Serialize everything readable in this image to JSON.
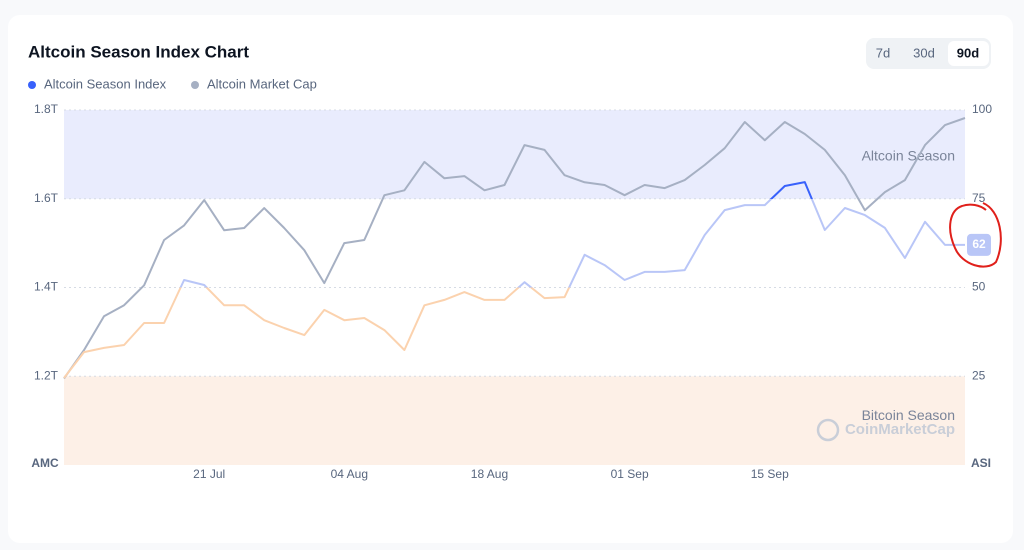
{
  "chart_data": {
    "type": "line",
    "title": "Altcoin Season Index Chart",
    "range_options": [
      "7d",
      "30d",
      "90d"
    ],
    "selected_range": "90d",
    "y_axis_label": "AMC",
    "y2_axis_label": "ASI",
    "watermark": "CoinMarketCap",
    "x": [
      0,
      2,
      4,
      6,
      8,
      10,
      12,
      14,
      16,
      18,
      20,
      22,
      24,
      26,
      28,
      30,
      32,
      34,
      36,
      38,
      40,
      42,
      44,
      46,
      48,
      50,
      52,
      54,
      56,
      58,
      60,
      62,
      64,
      66,
      68,
      70,
      72,
      74,
      76,
      78,
      80,
      82,
      84,
      86,
      88,
      90
    ],
    "xlim": [
      0,
      90
    ],
    "xticks": [
      {
        "value": 14.5,
        "label": "21 Jul"
      },
      {
        "value": 28.5,
        "label": "04 Aug"
      },
      {
        "value": 42.5,
        "label": "18 Aug"
      },
      {
        "value": 56.5,
        "label": "01 Sep"
      },
      {
        "value": 70.5,
        "label": "15 Sep"
      }
    ],
    "ylim": [
      1.0,
      1.8
    ],
    "yticks": [
      {
        "value": 1.2,
        "label": "1.2T"
      },
      {
        "value": 1.4,
        "label": "1.4T"
      },
      {
        "value": 1.6,
        "label": "1.6T"
      },
      {
        "value": 1.8,
        "label": "1.8T"
      }
    ],
    "y2lim": [
      0,
      100
    ],
    "y2ticks": [
      25,
      50,
      75,
      100
    ],
    "bands": [
      {
        "label": "Altcoin Season",
        "from": 75,
        "to": 100,
        "color": "#e9ecfd"
      },
      {
        "label": "Bitcoin Season",
        "from": 0,
        "to": 25,
        "color": "#fdf0e7"
      }
    ],
    "series": [
      {
        "name": "Altcoin Season Index",
        "color": "#3861fb",
        "axis": "y2",
        "values": [
          24.5,
          31.8,
          33,
          33.8,
          40,
          40,
          52.1,
          50.7,
          45,
          45,
          40.8,
          38.6,
          36.6,
          43.7,
          40.8,
          41.4,
          38,
          32.4,
          45,
          46.5,
          48.7,
          46.5,
          46.5,
          51.5,
          47,
          47.3,
          59.2,
          56.3,
          52.1,
          54.4,
          54.4,
          54.9,
          64.8,
          71.8,
          73.2,
          73.2,
          78.6,
          79.7,
          66.2,
          72.4,
          70.4,
          66.8,
          58.3,
          68.5,
          62,
          62
        ]
      },
      {
        "name": "Altcoin Market Cap",
        "color": "#a6b0c3",
        "values": [
          1.195,
          1.259,
          1.335,
          1.36,
          1.405,
          1.507,
          1.54,
          1.597,
          1.529,
          1.534,
          1.579,
          1.534,
          1.484,
          1.41,
          1.5,
          1.507,
          1.608,
          1.619,
          1.683,
          1.646,
          1.651,
          1.619,
          1.631,
          1.721,
          1.71,
          1.653,
          1.637,
          1.631,
          1.608,
          1.631,
          1.624,
          1.642,
          1.676,
          1.714,
          1.773,
          1.732,
          1.773,
          1.746,
          1.71,
          1.653,
          1.574,
          1.615,
          1.642,
          1.721,
          1.766,
          1.782
        ]
      }
    ]
  }
}
